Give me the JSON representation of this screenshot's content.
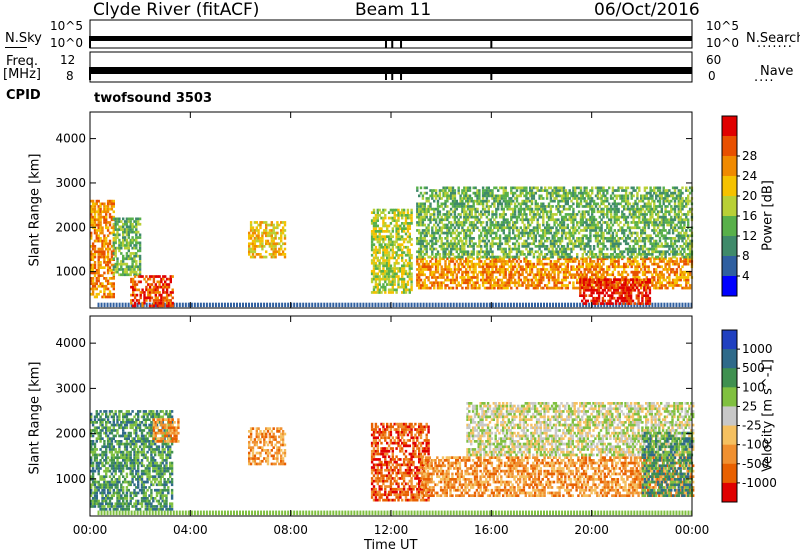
{
  "header": {
    "station": "Clyde River (fitACF)",
    "beam": "Beam 11",
    "date": "06/Oct/2016"
  },
  "status_panels": {
    "nsky_label": "N.Sky",
    "nsearch_label": "N.Search",
    "freq_label": "Freq.",
    "freq_unit": "[MHz]",
    "nave_label": "Nave",
    "cpid_label": "CPID",
    "cpid_value": "twofsound 3503",
    "noise_ticks_left": [
      "10^5",
      "10^0"
    ],
    "noise_ticks_right": [
      "10^5",
      "10^0"
    ],
    "freq_ticks": [
      "12",
      "8"
    ],
    "nave_ticks": [
      "60",
      "0"
    ]
  },
  "x_axis": {
    "label": "Time UT",
    "ticks": [
      "00:00",
      "04:00",
      "08:00",
      "12:00",
      "16:00",
      "20:00",
      "00:00"
    ],
    "range_hours": [
      0,
      24
    ]
  },
  "chart_data": [
    {
      "type": "heatmap",
      "name": "power",
      "ylabel": "Slant Range [km]",
      "yticks": [
        1000,
        2000,
        3000,
        4000
      ],
      "ylim": [
        180,
        4600
      ],
      "colorbar_label": "Power [dB]",
      "colorbar_ticks": [
        "4",
        "8",
        "12",
        "16",
        "20",
        "24",
        "28"
      ],
      "colorbar_colors": [
        "#0000ff",
        "#2f5fa0",
        "#3f8a6a",
        "#58b04a",
        "#b8d036",
        "#f5c200",
        "#f08a00",
        "#e85000",
        "#e00000"
      ],
      "regions": [
        {
          "t": [
            0.0,
            0.9
          ],
          "r": [
            400,
            2600
          ],
          "level": 6
        },
        {
          "t": [
            0.9,
            2.0
          ],
          "r": [
            900,
            2200
          ],
          "level": 3
        },
        {
          "t": [
            1.6,
            3.3
          ],
          "r": [
            200,
            900
          ],
          "level": 7
        },
        {
          "t": [
            6.3,
            7.8
          ],
          "r": [
            1300,
            2100
          ],
          "level": 5
        },
        {
          "t": [
            11.2,
            12.8
          ],
          "r": [
            500,
            2400
          ],
          "level": 4
        },
        {
          "t": [
            13.0,
            24.0
          ],
          "r": [
            600,
            1300
          ],
          "level": 6
        },
        {
          "t": [
            13.0,
            24.0
          ],
          "r": [
            1300,
            2900
          ],
          "level": 3
        },
        {
          "t": [
            19.5,
            22.3
          ],
          "r": [
            250,
            800
          ],
          "level": 8
        }
      ]
    },
    {
      "type": "heatmap",
      "name": "velocity",
      "ylabel": "Slant Range [km]",
      "yticks": [
        1000,
        2000,
        3000,
        4000
      ],
      "ylim": [
        180,
        4600
      ],
      "colorbar_label": "Velocity [m s^-1]",
      "colorbar_ticks": [
        "1000",
        "500",
        "100",
        "25",
        "-25",
        "-100",
        "-500",
        "-1000"
      ],
      "colorbar_colors": [
        "#2040c0",
        "#2f6a8a",
        "#3f9050",
        "#80c040",
        "#c8c8c8",
        "#f5c060",
        "#f09030",
        "#e86000",
        "#e00000"
      ],
      "regions": [
        {
          "t": [
            0.0,
            3.3
          ],
          "r": [
            300,
            2500
          ],
          "level": 2
        },
        {
          "t": [
            2.5,
            3.5
          ],
          "r": [
            1800,
            2300
          ],
          "level": 6
        },
        {
          "t": [
            6.3,
            7.8
          ],
          "r": [
            1300,
            2100
          ],
          "level": 6
        },
        {
          "t": [
            11.2,
            13.5
          ],
          "r": [
            500,
            2200
          ],
          "level": 7
        },
        {
          "t": [
            13.2,
            24.0
          ],
          "r": [
            600,
            1500
          ],
          "level": 6
        },
        {
          "t": [
            15.0,
            24.0
          ],
          "r": [
            1500,
            2700
          ],
          "level": 4
        },
        {
          "t": [
            22.0,
            24.0
          ],
          "r": [
            600,
            2000
          ],
          "level": 2
        }
      ]
    }
  ]
}
